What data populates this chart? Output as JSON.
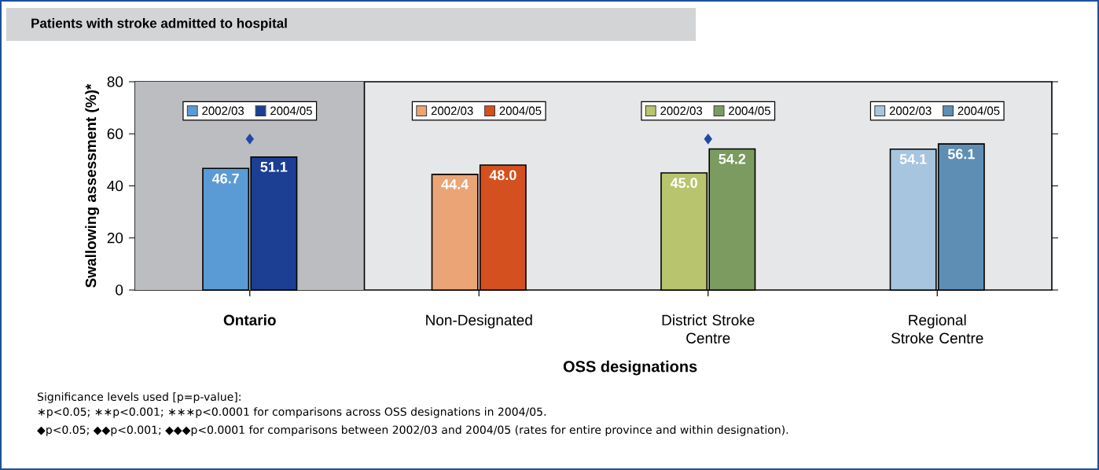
{
  "chart_data": {
    "type": "bar",
    "title": "Patients with stroke admitted to hospital",
    "xlabel": "OSS designations",
    "ylabel": "Swallowing assessment (%)*",
    "categories": [
      "Ontario",
      "Non-Designated",
      "District Stroke Centre",
      "Regional Stroke Centre"
    ],
    "series": [
      {
        "name": "2002/03",
        "colors": [
          "#5b9bd5",
          "#eaa475",
          "#b8c46e",
          "#a7c5de"
        ],
        "values": [
          46.7,
          44.4,
          45.0,
          54.1
        ],
        "value_labels": [
          "46.7",
          "44.4",
          "45.0",
          "54.1"
        ]
      },
      {
        "name": "2004/05",
        "colors": [
          "#1c3f94",
          "#d4501e",
          "#7b9b60",
          "#5f8eb4"
        ],
        "values": [
          51.1,
          48.0,
          54.2,
          56.1
        ],
        "value_labels": [
          "51.1",
          "48.0",
          "54.2",
          "56.1"
        ]
      },
      {
        "type": "scatter",
        "color": "#2446a6",
        "marker": "diamond",
        "x": [
          "Ontario",
          "District Stroke Centre"
        ],
        "values": [
          58,
          58
        ]
      }
    ],
    "ylim": [
      0,
      80
    ],
    "yticks": [
      0,
      20,
      40,
      60,
      80
    ],
    "legend": "top",
    "grid": false,
    "bands": [
      {
        "axis": "x",
        "from": "Ontario",
        "to": "Ontario",
        "color": "#bcbdc0"
      }
    ],
    "annotations": [
      "Significance levels used [p=p-value]:",
      "∗p<0.05; ∗∗p<0.001; ∗∗∗p<0.0001 for comparisons across OSS designations in 2004/05.",
      "◆p<0.05; ◆◆p<0.001; ◆◆◆p<0.0001 for comparisons between 2002/03 and 2004/05 (rates for entire province and within designation)."
    ]
  }
}
